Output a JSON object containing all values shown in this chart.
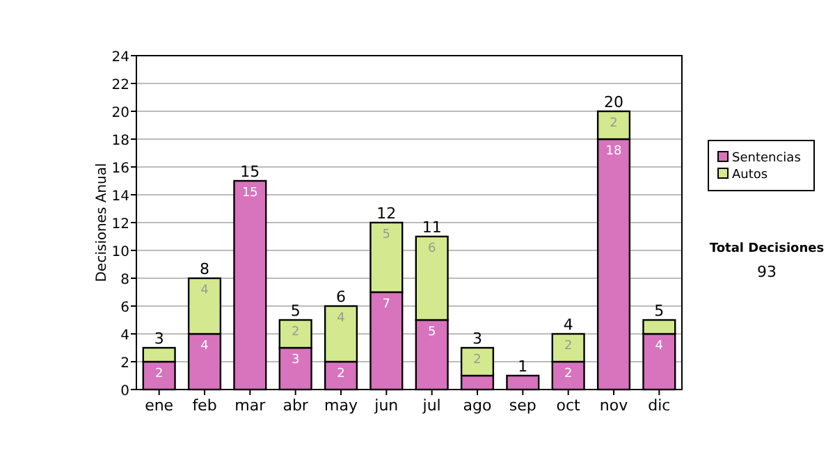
{
  "chart_data": {
    "type": "bar",
    "stacked": true,
    "ylabel": "Decisiones Anual",
    "categories": [
      "ene",
      "feb",
      "mar",
      "abr",
      "may",
      "jun",
      "jul",
      "ago",
      "sep",
      "oct",
      "nov",
      "dic"
    ],
    "series": [
      {
        "name": "Sentencias",
        "color": "#d873bd",
        "values": [
          2,
          4,
          15,
          3,
          2,
          7,
          5,
          1,
          1,
          2,
          18,
          4
        ],
        "value_labels": [
          "2",
          "4",
          "15",
          "3",
          "2",
          "7",
          "5",
          null,
          null,
          "2",
          "18",
          "4"
        ]
      },
      {
        "name": "Autos",
        "color": "#d4e98f",
        "values": [
          1,
          4,
          0,
          2,
          4,
          5,
          6,
          2,
          0,
          2,
          2,
          1
        ],
        "value_labels": [
          null,
          "4",
          null,
          "2",
          "4",
          "5",
          "6",
          "2",
          null,
          "2",
          "2",
          null
        ]
      }
    ],
    "totals": [
      "3",
      "8",
      "15",
      "5",
      "6",
      "12",
      "11",
      "3",
      "1",
      "4",
      "20",
      "5"
    ],
    "ylim": [
      0,
      24
    ],
    "yticks": [
      0,
      2,
      4,
      6,
      8,
      10,
      12,
      14,
      16,
      18,
      20,
      22,
      24
    ],
    "grid": "y",
    "legend": "right",
    "annotations": [
      "Total Decisiones",
      "93"
    ]
  }
}
